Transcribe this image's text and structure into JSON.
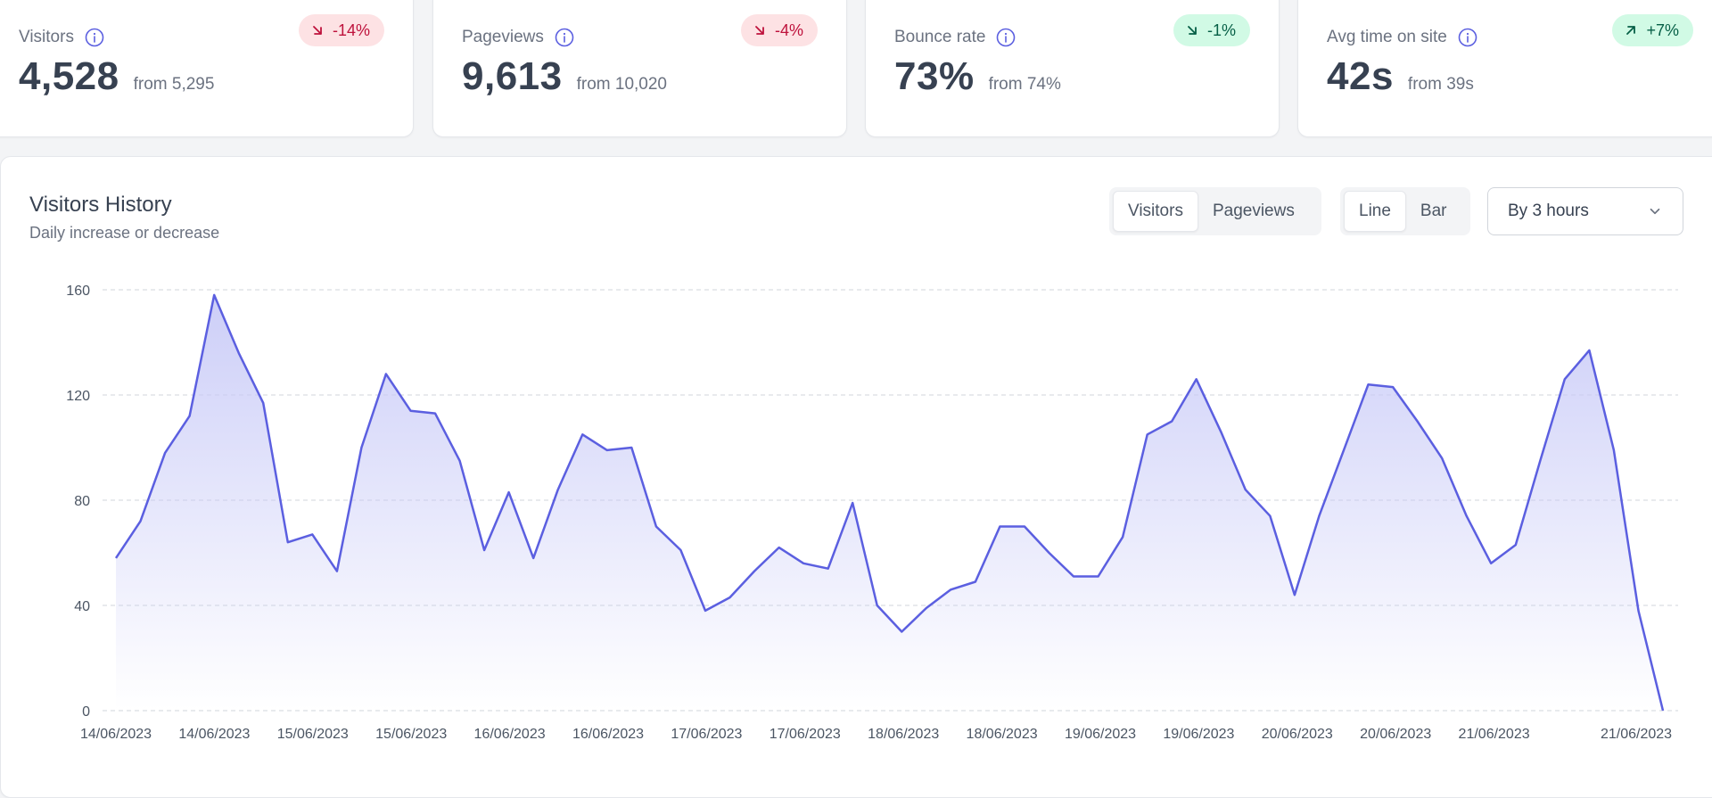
{
  "stats": [
    {
      "label": "Visitors",
      "value": "4,528",
      "from": "from 5,295",
      "change": "-14%",
      "direction": "down"
    },
    {
      "label": "Pageviews",
      "value": "9,613",
      "from": "from 10,020",
      "change": "-4%",
      "direction": "down"
    },
    {
      "label": "Bounce rate",
      "value": "73%",
      "from": "from 74%",
      "change": "-1%",
      "direction": "down-good"
    },
    {
      "label": "Avg time on site",
      "value": "42s",
      "from": "from 39s",
      "change": "+7%",
      "direction": "up"
    }
  ],
  "history": {
    "title": "Visitors History",
    "subtitle": "Daily increase or decrease",
    "metric_toggle": {
      "options": [
        "Visitors",
        "Pageviews"
      ],
      "selected": "Visitors"
    },
    "type_toggle": {
      "options": [
        "Line",
        "Bar"
      ],
      "selected": "Line"
    },
    "interval_select": {
      "value": "By 3 hours"
    }
  },
  "colors": {
    "line": "#5b5fe0",
    "fill_top": "#c7c9f7",
    "down_badge": "#fde2e4",
    "up_badge": "#d1fae5"
  },
  "chart_data": {
    "type": "area",
    "ylim": [
      0,
      160
    ],
    "y_ticks": [
      0,
      40,
      80,
      120,
      160
    ],
    "x_tick_labels": [
      "14/06/2023",
      "14/06/2023",
      "15/06/2023",
      "15/06/2023",
      "16/06/2023",
      "16/06/2023",
      "17/06/2023",
      "17/06/2023",
      "18/06/2023",
      "18/06/2023",
      "19/06/2023",
      "19/06/2023",
      "20/06/2023",
      "20/06/2023",
      "21/06/2023",
      "21/06/2023"
    ],
    "grid": true,
    "series": [
      {
        "values": [
          58,
          72,
          98,
          112,
          158,
          136,
          117,
          64,
          67,
          53,
          100,
          128,
          114,
          113,
          95,
          61,
          83,
          58,
          84,
          105,
          99,
          100,
          70,
          61,
          38,
          43,
          53,
          62,
          56,
          54,
          79,
          40,
          30,
          39,
          46,
          49,
          70,
          70,
          60,
          51,
          51,
          66,
          105,
          110,
          126,
          106,
          84,
          74,
          44,
          74,
          99,
          124,
          123,
          110,
          96,
          74,
          56,
          63,
          95,
          126,
          137,
          99,
          38,
          0
        ]
      }
    ]
  }
}
